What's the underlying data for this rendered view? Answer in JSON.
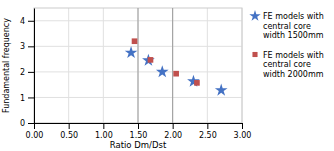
{
  "chart_data": {
    "type": "scatter",
    "x_label": "Ratio Dm/Dst",
    "y_label": "Fundamental frequency",
    "series": [
      {
        "name": "FE models with\ncentral core\nwidth 1500mm",
        "color": "#4472C4",
        "marker": "star",
        "x": [
          1.4,
          1.65,
          1.85,
          2.3,
          2.7
        ],
        "values": [
          2.75,
          2.45,
          2.0,
          1.63,
          1.28
        ]
      },
      {
        "name": "FE models with\ncentral core\nwidth 2000mm",
        "color": "#C0504D",
        "marker": "square",
        "x": [
          1.45,
          1.68,
          2.05,
          2.35
        ],
        "values": [
          3.2,
          2.47,
          1.93,
          1.57
        ]
      }
    ],
    "vlines": [
      1.5,
      2.0
    ],
    "xlim": [
      0.0,
      3.0
    ],
    "ylim": [
      0,
      4.5
    ],
    "xticks": [
      {
        "value": 0.0,
        "label": "0.00"
      },
      {
        "value": 0.5,
        "label": "0.50"
      },
      {
        "value": 1.0,
        "label": "1.00"
      },
      {
        "value": 1.5,
        "label": "1.50"
      },
      {
        "value": 2.0,
        "label": "2.00"
      },
      {
        "value": 2.5,
        "label": "2.50"
      },
      {
        "value": 3.0,
        "label": "3.00"
      }
    ],
    "yticks": [
      0,
      1,
      2,
      3,
      4
    ],
    "grid": true,
    "legend": "right"
  }
}
